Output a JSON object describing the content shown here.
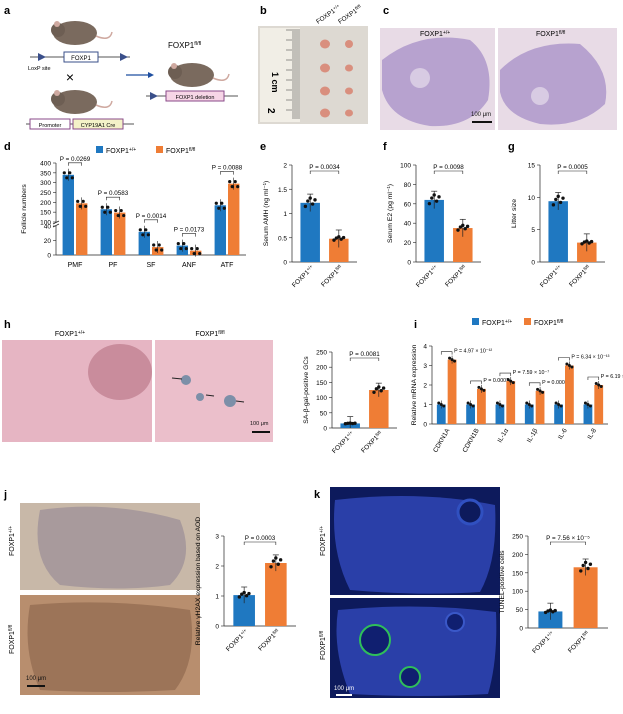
{
  "colors": {
    "wt": "#1f78c1",
    "ko": "#ef7d35",
    "he_bg": "#e3ccd8",
    "he_tissue": "#b99fd0",
    "sa_bg": "#e8b7c4",
    "ihc_bg": "#c4b3a4",
    "dapi_bg": "#0a1240"
  },
  "panels": {
    "a": "a",
    "b": "b",
    "c": "c",
    "d": "d",
    "e": "e",
    "f": "f",
    "g": "g",
    "h": "h",
    "i": "i",
    "j": "j",
    "k": "k"
  },
  "a": {
    "foxp1_box": "FOXP1",
    "loxp": "LoxP site",
    "cross": "×",
    "promoter": "Promoter",
    "cre": "CYP19A1 Cre",
    "offspring": "FOXP1",
    "offspring_sup": "fl/fl",
    "deletion": "FOXP1 deletion"
  },
  "b": {
    "wt": "FOXP1",
    "wt_sup": "+/+",
    "ko": "FOXP1",
    "ko_sup": "fl/fl",
    "ruler": [
      "1 cm",
      "2"
    ]
  },
  "c": {
    "wt": "FOXP1",
    "wt_sup": "+/+",
    "ko": "FOXP1",
    "ko_sup": "fl/fl",
    "scale": "100 μm"
  },
  "legend": {
    "wt": "FOXP1",
    "wt_sup": "+/+",
    "ko": "FOXP1",
    "ko_sup": "fl/fl"
  },
  "xlab": {
    "wt": "FOXP1",
    "wt_sup": "+/+",
    "ko": "FOXP1",
    "ko_sup": "fl/fl"
  },
  "h": {
    "wt": "FOXP1",
    "wt_sup": "+/+",
    "ko": "FOXP1",
    "ko_sup": "fl/fl",
    "scale": "100 μm"
  },
  "j": {
    "wt": "FOXP1",
    "wt_sup": "+/+",
    "ko": "FOXP1",
    "ko_sup": "fl/fl",
    "scale": "100 μm"
  },
  "k": {
    "wt": "FOXP1",
    "wt_sup": "+/+",
    "ko": "FOXP1",
    "ko_sup": "fl/fl",
    "scale": "100 μm"
  },
  "chart_data": [
    {
      "id": "d",
      "type": "bar",
      "ylabel": "Follicle numbers",
      "categories": [
        "PMF",
        "PF",
        "SF",
        "ANF",
        "ATF"
      ],
      "series": [
        {
          "name": "FOXP1+/+",
          "values": [
            340,
            165,
            32,
            13,
            185
          ]
        },
        {
          "name": "FOXP1fl/fl",
          "values": [
            195,
            148,
            11,
            6,
            295
          ]
        }
      ],
      "yticks_upper": [
        100,
        150,
        200,
        250,
        300,
        350,
        400
      ],
      "yticks_lower": [
        0,
        20,
        40
      ],
      "pvalues": [
        "P = 0.0269",
        "P = 0.0583",
        "P = 0.0014",
        "P = 0.0173",
        "P = 0.0088"
      ]
    },
    {
      "id": "e",
      "type": "bar",
      "ylabel": "Serum AMH (ng ml⁻¹)",
      "categories": [
        "FOXP1+/+",
        "FOXP1fl/fl"
      ],
      "values": [
        1.22,
        0.48
      ],
      "ylim": [
        0,
        2.0
      ],
      "yticks": [
        0,
        0.5,
        1.0,
        1.5,
        2.0
      ],
      "pvalue": "P = 0.0034"
    },
    {
      "id": "f",
      "type": "bar",
      "ylabel": "Serum E2 (pg ml⁻¹)",
      "categories": [
        "FOXP1+/+",
        "FOXP1fl/fl"
      ],
      "values": [
        64,
        35
      ],
      "ylim": [
        0,
        100
      ],
      "yticks": [
        0,
        20,
        40,
        60,
        80,
        100
      ],
      "pvalue": "P = 0.0098"
    },
    {
      "id": "g",
      "type": "bar",
      "ylabel": "Litter size",
      "categories": [
        "FOXP1+/+",
        "FOXP1fl/fl"
      ],
      "values": [
        9.4,
        3.0
      ],
      "ylim": [
        0,
        15
      ],
      "yticks": [
        0,
        5,
        10,
        15
      ],
      "pvalue": "P = 0.0005"
    },
    {
      "id": "h",
      "type": "bar",
      "ylabel": "SA-β-gal-positive GCs",
      "categories": [
        "FOXP1+/+",
        "FOXP1fl/fl"
      ],
      "values": [
        15,
        125
      ],
      "ylim": [
        0,
        250
      ],
      "yticks": [
        0,
        50,
        100,
        150,
        200,
        250
      ],
      "pvalue": "P = 0.0081"
    },
    {
      "id": "i",
      "type": "bar",
      "ylabel": "Relative mRNA expression",
      "categories": [
        "CDKN1A",
        "CDKN1B",
        "IL-1α",
        "IL-1β",
        "IL-6",
        "IL-8"
      ],
      "series": [
        {
          "name": "FOXP1+/+",
          "values": [
            1,
            1,
            1,
            1,
            1,
            1
          ]
        },
        {
          "name": "FOXP1fl/fl",
          "values": [
            3.3,
            1.8,
            2.2,
            1.7,
            3.0,
            2.0
          ]
        }
      ],
      "ylim": [
        0,
        4
      ],
      "yticks": [
        0,
        1,
        2,
        3,
        4
      ],
      "pvalues": [
        "P = 4.97 × 10⁻¹²",
        "P = 0.0003",
        "P = 7.59 × 10⁻⁷",
        "P = 0.0009",
        "P = 6.34 × 10⁻¹³",
        "P = 6.19 × 10⁻⁵"
      ]
    },
    {
      "id": "j",
      "type": "bar",
      "ylabel": "Relative γH2AX expression based on AOD",
      "categories": [
        "FOXP1+/+",
        "FOXP1fl/fl"
      ],
      "values": [
        1.03,
        2.1
      ],
      "ylim": [
        0,
        3
      ],
      "yticks": [
        0,
        1,
        2,
        3
      ],
      "pvalue": "P = 0.0003"
    },
    {
      "id": "k",
      "type": "bar",
      "ylabel": "TUNEL-positive cells",
      "categories": [
        "FOXP1+/+",
        "FOXP1fl/fl"
      ],
      "values": [
        45,
        165
      ],
      "ylim": [
        0,
        250
      ],
      "yticks": [
        0,
        50,
        100,
        150,
        200,
        250
      ],
      "pvalue": "P = 7.56 × 10⁻⁵"
    }
  ]
}
